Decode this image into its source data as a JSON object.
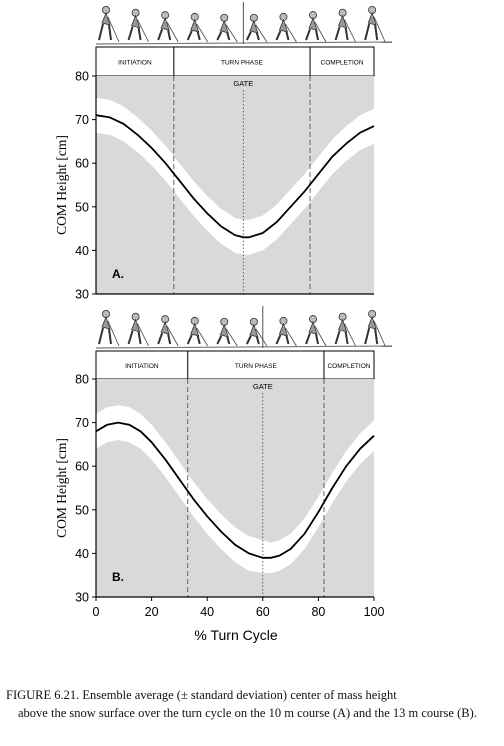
{
  "x_axis_label": "% Turn Cycle",
  "chart_data": [
    {
      "type": "line",
      "panel_label": "A.",
      "phases": [
        "INITIATION",
        "TURN PHASE",
        "COMPLETION"
      ],
      "phase_boundaries_x": [
        28,
        77
      ],
      "gate_label": "GATE",
      "gate_x": 53,
      "xlim": [
        0,
        100
      ],
      "ylim": [
        30,
        80
      ],
      "yticks": [
        30,
        40,
        50,
        60,
        70,
        80
      ],
      "xticks": [],
      "ylabel": "COM Height [cm]",
      "series": [
        {
          "x": [
            0,
            5,
            10,
            15,
            20,
            25,
            30,
            35,
            40,
            45,
            50,
            53,
            55,
            60,
            65,
            70,
            75,
            80,
            85,
            90,
            95,
            100
          ],
          "mean": [
            71,
            70.5,
            69,
            66.5,
            63.5,
            60,
            56,
            52,
            48.5,
            45.5,
            43.5,
            43,
            43,
            44,
            46.5,
            50,
            53.5,
            57.5,
            61.5,
            64.5,
            67,
            68.5
          ],
          "upper": [
            75,
            74.5,
            73,
            70.5,
            67.5,
            64,
            60,
            56,
            52.5,
            49.5,
            47.5,
            47,
            47,
            48,
            50.5,
            54,
            57.5,
            61.5,
            65.5,
            68.5,
            71,
            72.5
          ],
          "lower": [
            67,
            66.5,
            65,
            62.5,
            59.5,
            56,
            52,
            48,
            44.5,
            41.5,
            39.5,
            39,
            39,
            40,
            42.5,
            46,
            49.5,
            53.5,
            57.5,
            60.5,
            63,
            64.5
          ]
        }
      ]
    },
    {
      "type": "line",
      "panel_label": "B.",
      "phases": [
        "INITIATION",
        "TURN PHASE",
        "COMPLETION"
      ],
      "phase_boundaries_x": [
        33,
        82
      ],
      "gate_label": "GATE",
      "gate_x": 60,
      "xlim": [
        0,
        100
      ],
      "ylim": [
        30,
        80
      ],
      "yticks": [
        30,
        40,
        50,
        60,
        70,
        80
      ],
      "xticks": [
        0,
        20,
        40,
        60,
        80,
        100
      ],
      "ylabel": "COM Height [cm]",
      "series": [
        {
          "x": [
            0,
            4,
            8,
            12,
            16,
            20,
            25,
            30,
            35,
            40,
            45,
            50,
            55,
            60,
            63,
            66,
            70,
            75,
            80,
            85,
            90,
            95,
            100
          ],
          "mean": [
            68,
            69.5,
            70,
            69.5,
            68,
            65.5,
            61.5,
            57,
            52.5,
            48.5,
            45,
            42,
            40,
            39,
            39,
            39.5,
            41,
            44.5,
            49.5,
            55,
            60,
            64,
            67
          ],
          "upper": [
            72,
            73.5,
            74,
            73.5,
            72,
            69.5,
            65.5,
            61,
            56.5,
            52.5,
            49,
            46,
            44,
            43,
            42.5,
            43,
            44.5,
            48,
            53,
            58.5,
            63.5,
            67.5,
            70.5
          ],
          "lower": [
            64,
            65.5,
            66,
            65.5,
            64,
            61.5,
            57.5,
            53,
            48.5,
            44.5,
            41,
            38,
            36,
            35.5,
            35.5,
            36,
            37.5,
            41,
            46,
            51.5,
            56.5,
            60.5,
            63.5
          ]
        }
      ]
    }
  ],
  "caption": {
    "line1": "FIGURE 6.21.  Ensemble average (± standard deviation) center of mass height",
    "rest": "above the snow surface over the turn cycle on the 10 m course (A) and the 13 m course (B)."
  }
}
